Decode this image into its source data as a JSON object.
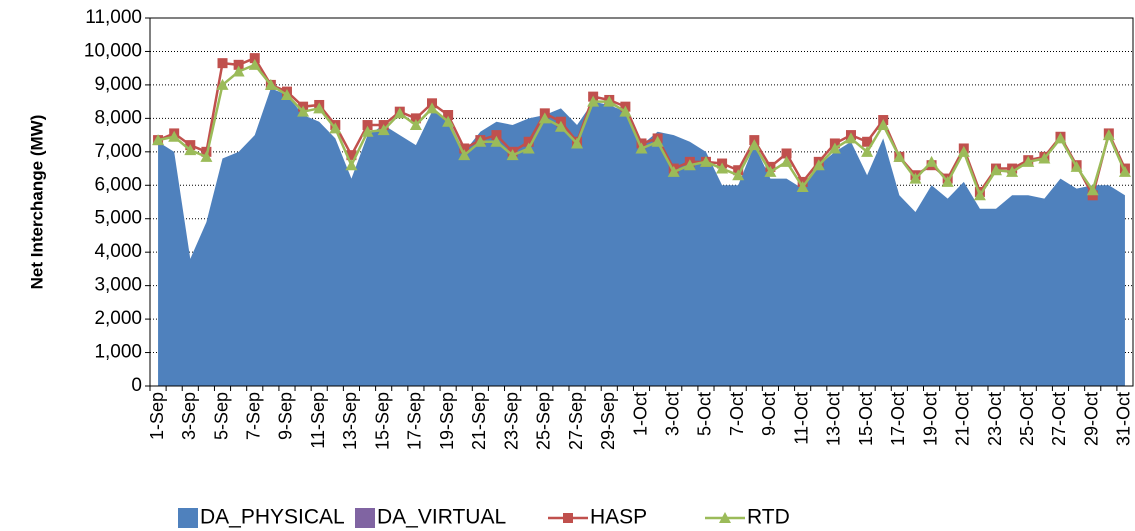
{
  "chart_data": {
    "type": "area",
    "y_label": "Net Interchange (MW)",
    "categories": [
      "1-Sep",
      null,
      "3-Sep",
      null,
      "5-Sep",
      null,
      "7-Sep",
      null,
      "9-Sep",
      null,
      "11-Sep",
      null,
      "13-Sep",
      null,
      "15-Sep",
      null,
      "17-Sep",
      null,
      "19-Sep",
      null,
      "21-Sep",
      null,
      "23-Sep",
      null,
      "25-Sep",
      null,
      "27-Sep",
      null,
      "29-Sep",
      null,
      "1-Oct",
      null,
      "3-Oct",
      null,
      "5-Oct",
      null,
      "7-Oct",
      null,
      "9-Oct",
      null,
      "11-Oct",
      null,
      "13-Oct",
      null,
      "15-Oct",
      null,
      "17-Oct",
      null,
      "19-Oct",
      null,
      "21-Oct",
      null,
      "23-Oct",
      null,
      "25-Oct",
      null,
      "27-Oct",
      null,
      "29-Oct",
      null,
      "31-Oct"
    ],
    "series": [
      {
        "name": "DA_PHYSICAL",
        "type": "area",
        "color": "#4f81bd",
        "values": [
          7300,
          7000,
          3800,
          4900,
          6800,
          7000,
          7500,
          8900,
          8700,
          8100,
          7900,
          7400,
          6200,
          7500,
          7800,
          7500,
          7200,
          8200,
          8000,
          7000,
          7600,
          7900,
          7800,
          8000,
          8100,
          8300,
          7800,
          8500,
          8400,
          8200,
          7200,
          7600,
          7500,
          7300,
          7000,
          6000,
          6000,
          7200,
          6200,
          6200,
          5900,
          6600,
          7000,
          7300,
          6300,
          7400,
          5700,
          5200,
          6000,
          5600,
          6100,
          5300,
          5300,
          5700,
          5700,
          5600,
          6200,
          5900,
          6000,
          6000,
          5700
        ]
      },
      {
        "name": "DA_VIRTUAL",
        "type": "area",
        "color": "#8064a2",
        "values": [
          0,
          0,
          0,
          0,
          0,
          0,
          0,
          0,
          0,
          0,
          0,
          0,
          0,
          0,
          0,
          0,
          0,
          0,
          0,
          0,
          0,
          0,
          0,
          0,
          0,
          0,
          0,
          0,
          0,
          0,
          0,
          0,
          0,
          0,
          0,
          0,
          0,
          0,
          0,
          0,
          0,
          0,
          0,
          0,
          0,
          0,
          0,
          0,
          0,
          0,
          0,
          0,
          0,
          0,
          0,
          0,
          0,
          0,
          0,
          0,
          0
        ]
      },
      {
        "name": "HASP",
        "type": "line",
        "marker": "square",
        "color": "#c0504d",
        "values": [
          7350,
          7550,
          7200,
          7000,
          9650,
          9600,
          9800,
          9000,
          8800,
          8350,
          8400,
          7800,
          6900,
          7800,
          7800,
          8200,
          8000,
          8450,
          8100,
          7100,
          7350,
          7500,
          7000,
          7300,
          8150,
          7900,
          7300,
          8650,
          8550,
          8350,
          7250,
          7400,
          6500,
          6700,
          6700,
          6650,
          6450,
          7350,
          6550,
          6950,
          6100,
          6700,
          7250,
          7500,
          7300,
          7950,
          6850,
          6300,
          6600,
          6200,
          7100,
          5800,
          6500,
          6500,
          6750,
          6850,
          7450,
          6600,
          5700,
          7550,
          6500
        ]
      },
      {
        "name": "RTD",
        "type": "line",
        "marker": "triangle",
        "color": "#9bbb59",
        "values": [
          7350,
          7450,
          7050,
          6850,
          9000,
          9400,
          9600,
          9000,
          8700,
          8200,
          8300,
          7700,
          6600,
          7600,
          7650,
          8150,
          7800,
          8300,
          7900,
          6900,
          7300,
          7300,
          6900,
          7100,
          8000,
          7750,
          7250,
          8500,
          8500,
          8200,
          7100,
          7300,
          6400,
          6600,
          6700,
          6500,
          6300,
          7200,
          6400,
          6700,
          5950,
          6600,
          7100,
          7400,
          7000,
          7800,
          6850,
          6200,
          6700,
          6100,
          7000,
          5700,
          6450,
          6400,
          6700,
          6800,
          7400,
          6550,
          5850,
          7500,
          6400
        ]
      }
    ],
    "ylim": [
      0,
      11000
    ],
    "yticks": [
      0,
      {
        "value": 1000,
        "label": "1,000"
      },
      {
        "value": 2000,
        "label": "2,000"
      },
      {
        "value": 3000,
        "label": "3,000"
      },
      {
        "value": 4000,
        "label": "4,000"
      },
      {
        "value": 5000,
        "label": "5,000"
      },
      {
        "value": 6000,
        "label": "6,000"
      },
      {
        "value": 7000,
        "label": "7,000"
      },
      {
        "value": 8000,
        "label": "8,000"
      },
      {
        "value": 9000,
        "label": "9,000"
      },
      {
        "value": 10000,
        "label": "10,000"
      },
      {
        "value": 11000,
        "label": "11,000"
      }
    ],
    "grid": true,
    "legend": "bottom"
  }
}
